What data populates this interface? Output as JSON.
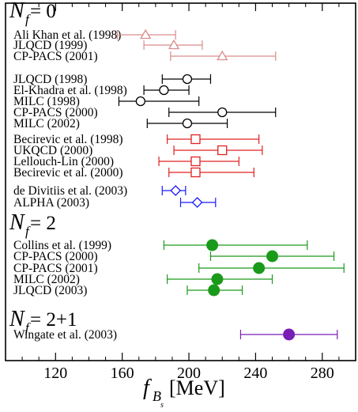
{
  "chart_data": {
    "type": "scatter",
    "subtype": "horizontal-errorbar",
    "xlabel_main": "f",
    "xlabel_sub": "B",
    "xlabel_subsub": "s",
    "xlabel_unit": "[MeV]",
    "xlim": [
      90,
      300
    ],
    "xticks": [
      120,
      160,
      200,
      240,
      280
    ],
    "grid": false,
    "sections": [
      {
        "label_main": "N",
        "label_sub": "f",
        "label_rest": " = 0"
      },
      {
        "label_main": "N",
        "label_sub": "f",
        "label_rest": " = 2"
      },
      {
        "label_main": "N",
        "label_sub": "f",
        "label_rest": " = 2+1"
      }
    ],
    "groups": [
      {
        "color": "#d98c8c",
        "marker": "triangle-open",
        "entries": [
          {
            "label": "Ali Khan et al. (1998)",
            "value": 174,
            "low": 157,
            "high": 192
          },
          {
            "label": "JLQCD (1999)",
            "value": 191,
            "low": 173,
            "high": 208
          },
          {
            "label": "CP-PACS (2001)",
            "value": 220,
            "low": 189,
            "high": 252
          }
        ]
      },
      {
        "color": "#000000",
        "marker": "circle-open",
        "entries": [
          {
            "label": "JLQCD (1998)",
            "value": 199,
            "low": 184,
            "high": 213
          },
          {
            "label": "El-Khadra et al. (1998)",
            "value": 185,
            "low": 173,
            "high": 200
          },
          {
            "label": "MILC (1998)",
            "value": 171,
            "low": 158,
            "high": 206
          },
          {
            "label": "CP-PACS (2000)",
            "value": 220,
            "low": 188,
            "high": 252
          },
          {
            "label": "MILC (2002)",
            "value": 199,
            "low": 175,
            "high": 223
          }
        ]
      },
      {
        "color": "#e02020",
        "marker": "square-open",
        "entries": [
          {
            "label": "Becirevic et al. (1998)",
            "value": 204,
            "low": 187,
            "high": 242
          },
          {
            "label": "UKQCD (2000)",
            "value": 220,
            "low": 191,
            "high": 244
          },
          {
            "label": "Lellouch-Lin (2000)",
            "value": 204,
            "low": 182,
            "high": 230
          },
          {
            "label": "Becirevic et al. (2000)",
            "value": 204,
            "low": 188,
            "high": 239
          }
        ]
      },
      {
        "color": "#1a1aff",
        "marker": "diamond-open",
        "entries": [
          {
            "label": "de Divitiis et al. (2003)",
            "value": 192,
            "low": 184,
            "high": 198
          },
          {
            "label": "ALPHA (2003)",
            "value": 205,
            "low": 195,
            "high": 216
          }
        ]
      },
      {
        "color": "#1a9a1a",
        "marker": "circle-filled",
        "entries": [
          {
            "label": "Collins et al. (1999)",
            "value": 214,
            "low": 185,
            "high": 271
          },
          {
            "label": "CP-PACS (2000)",
            "value": 250,
            "low": 213,
            "high": 287
          },
          {
            "label": "CP-PACS (2001)",
            "value": 242,
            "low": 206,
            "high": 293
          },
          {
            "label": "MILC (2002)",
            "value": 217,
            "low": 187,
            "high": 250
          },
          {
            "label": "JLQCD (2003)",
            "value": 215,
            "low": 199,
            "high": 232
          }
        ]
      },
      {
        "color": "#7a1fb5",
        "marker": "circle-filled",
        "entries": [
          {
            "label": "Wingate et al. (2003)",
            "value": 260,
            "low": 231,
            "high": 289
          }
        ]
      }
    ]
  }
}
